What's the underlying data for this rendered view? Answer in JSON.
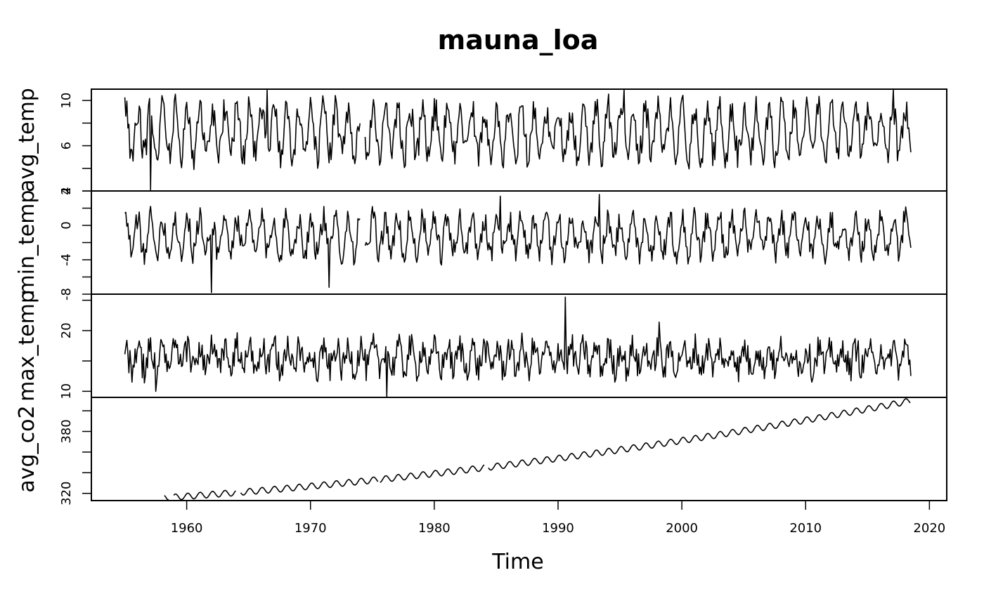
{
  "chart_data": {
    "type": "line",
    "title": "mauna_loa",
    "xlabel": "Time",
    "x_range": [
      1955,
      2018.5
    ],
    "x_ticks": [
      1960,
      1970,
      1980,
      1990,
      2000,
      2010,
      2020
    ],
    "frequency": "monthly",
    "panels": [
      {
        "name": "avg_temp",
        "ylabel": "avg_temp",
        "yrange": [
          2,
          11
        ],
        "major_ticks": [
          2,
          6,
          10
        ],
        "minor_ticks": [
          4,
          8
        ],
        "tick_labels": [
          "2",
          "6",
          "10"
        ],
        "start": 1955.0,
        "gaps": [
          [
            1974.0,
            1974.4
          ]
        ],
        "summary": {
          "min": 2.0,
          "max": 11.0,
          "typical_low": 4.5,
          "typical_high": 9.5
        }
      },
      {
        "name": "min_temp",
        "ylabel": "min_temp",
        "yrange": [
          -8,
          4
        ],
        "major_ticks": [
          -8,
          -4,
          0,
          4
        ],
        "minor_ticks": [
          -6,
          -2,
          2
        ],
        "tick_labels": [
          "-8",
          "-4",
          "0",
          "4"
        ],
        "start": 1955.0,
        "gaps": [
          [
            1974.0,
            1974.4
          ]
        ],
        "summary": {
          "min": -7.8,
          "max": 3.6,
          "typical_low": -4.0,
          "typical_high": 2.0
        }
      },
      {
        "name": "max_temp",
        "ylabel": "max_temp",
        "yrange": [
          9,
          26
        ],
        "major_ticks": [
          10,
          20
        ],
        "minor_ticks": [
          15,
          25
        ],
        "tick_labels": [
          "10",
          "20"
        ],
        "start": 1955.0,
        "gaps": [],
        "summary": {
          "min": 9.0,
          "max": 25.5,
          "typical_low": 13.0,
          "typical_high": 19.0
        }
      },
      {
        "name": "avg_co2",
        "ylabel": "avg_co2",
        "yrange": [
          313,
          413
        ],
        "major_ticks": [
          320,
          380
        ],
        "minor_ticks": [
          340,
          360,
          400
        ],
        "tick_labels": [
          "320",
          "380"
        ],
        "start": 1958.2,
        "gaps": [
          [
            1958.6,
            1958.9
          ],
          [
            1964.0,
            1964.3
          ],
          [
            1975.5,
            1975.6
          ],
          [
            1984.1,
            1984.3
          ]
        ],
        "summary": {
          "first_value": 315.7,
          "last_value": 410.5,
          "seasonal_amplitude": 3.0
        }
      }
    ]
  }
}
